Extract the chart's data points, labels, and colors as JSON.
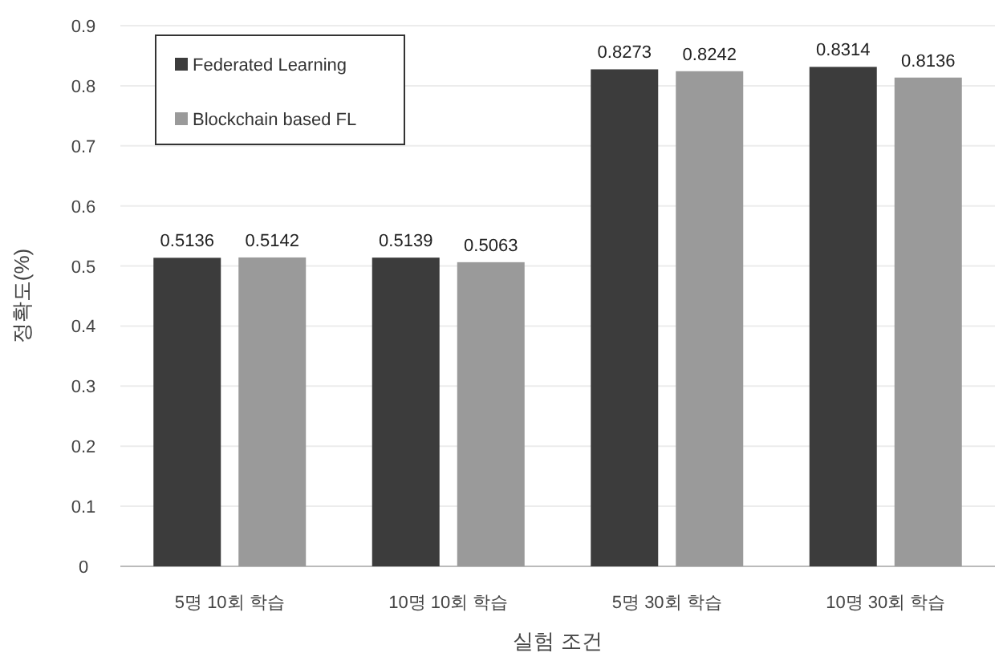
{
  "chart_data": {
    "type": "bar",
    "xlabel": "실험 조건",
    "ylabel": "정확도(%)",
    "categories": [
      "5명 10회 학습",
      "10명 10회 학습",
      "5명 30회 학습",
      "10명 30회 학습"
    ],
    "series": [
      {
        "name": "Federated Learning",
        "color": "#3c3c3c",
        "values": [
          0.5136,
          0.5139,
          0.8273,
          0.8314
        ]
      },
      {
        "name": "Blockchain based FL",
        "color": "#9a9a9a",
        "values": [
          0.5142,
          0.5063,
          0.8242,
          0.8136
        ]
      }
    ],
    "ylim": [
      0,
      0.9
    ],
    "yticks": [
      {
        "value": 0,
        "label": "0"
      },
      0.1,
      0.2,
      0.3,
      0.4,
      0.5,
      0.6,
      0.7,
      0.8,
      0.9
    ],
    "grid": "y",
    "legend": "top left",
    "data_labels": true
  }
}
